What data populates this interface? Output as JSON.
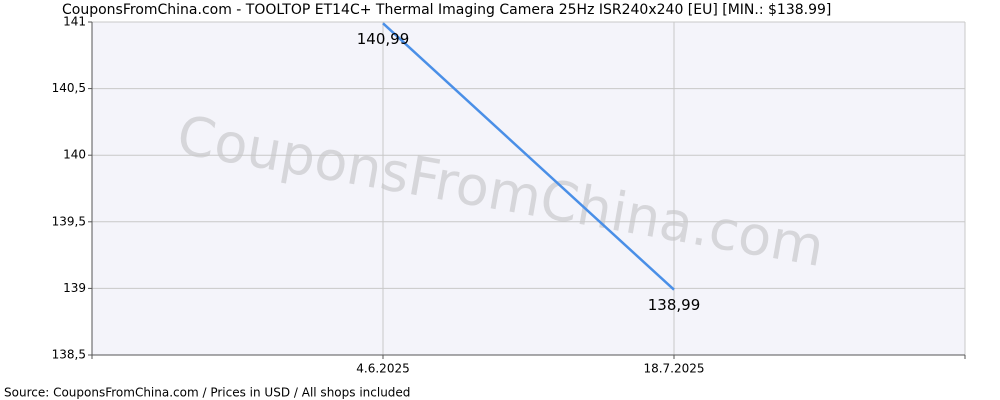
{
  "chart_data": {
    "type": "line",
    "title": "CouponsFromChina.com - TOOLTOP ET14C+ Thermal Imaging Camera 25Hz ISR240x240 [EU] [MIN.: $138.99]",
    "watermark": "CouponsFromChina.com",
    "source": "Source: CouponsFromChina.com / Prices in USD / All shops included",
    "categories": [
      null,
      "4.6.2025",
      "18.7.2025",
      null
    ],
    "values": [
      null,
      140.99,
      138.99,
      null
    ],
    "value_labels": [
      null,
      "140,99",
      "138,99",
      null
    ],
    "color": "#4a8fe7",
    "ylim": [
      138.5,
      141
    ],
    "yticks": [
      {
        "value": 138.5,
        "label": "138,5"
      },
      139,
      {
        "value": 139.5,
        "label": "139,5"
      },
      140,
      {
        "value": 140.5,
        "label": "140,5"
      },
      141
    ],
    "grid": true
  }
}
